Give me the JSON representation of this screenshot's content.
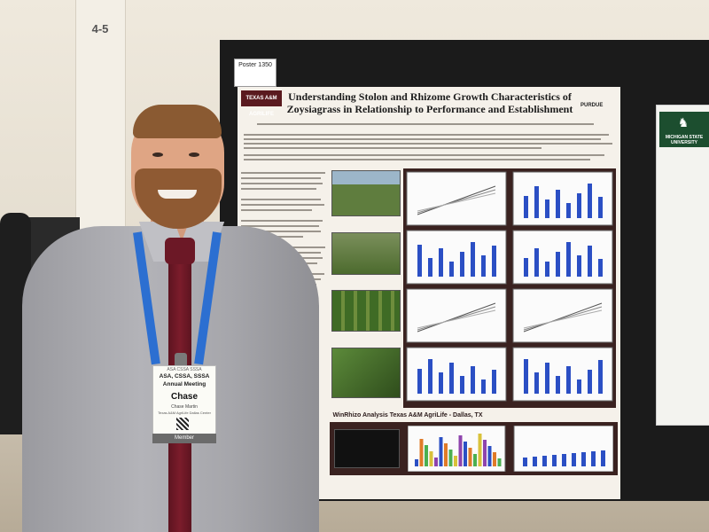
{
  "background": {
    "pillar_sign": "4-5"
  },
  "poster": {
    "number": "Poster 1350",
    "logo_text": "TEXAS A&M AGRILIFE",
    "title": "Understanding Stolon and Rhizome Growth Characteristics of Zoysiagrass in Relationship to Performance and Establishment",
    "partner_logo_text": "PURDUE",
    "section_header": "Texas A&M AgriLife - Dallas, TX",
    "bottom_header": "WinRhizo Analysis Texas A&M AgriLife - Dallas, TX"
  },
  "right_poster": {
    "logo_text": "MICHIGAN STATE UNIVERSITY"
  },
  "badge": {
    "top_text": "ASA CSSA SSSA",
    "org": "ASA, CSSA, SSSA",
    "meeting": "Annual Meeting",
    "first_name": "Chase",
    "full_name": "Chase Martin",
    "affiliation": "Texas A&M AgriLife Dallas Center",
    "role": "Member"
  },
  "colors": {
    "aggie_maroon": "#5a1a1f",
    "msu_green": "#1c4e2f",
    "lanyard_blue": "#2c6fd1",
    "tie_red": "#6c1826",
    "bar_blue": "#2b4fc4"
  }
}
